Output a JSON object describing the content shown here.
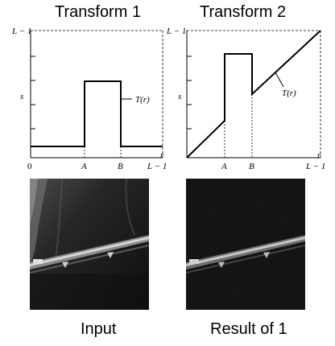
{
  "transform1": {
    "title": "Transform 1",
    "labels": {
      "y_top": "L − 1",
      "y_mid": "s",
      "x_origin": "0",
      "x_a": "A",
      "x_b": "B",
      "x_end": "L − 1",
      "x_axis": "r",
      "curve": "T(r)"
    }
  },
  "transform2": {
    "title": "Transform 2",
    "labels": {
      "y_top": "L − 1",
      "y_mid": "s",
      "x_a": "A",
      "x_b": "B",
      "x_end": "L − 1",
      "x_axis": "r",
      "curve": "T(r)"
    }
  },
  "images": {
    "input_caption": "Input",
    "result_caption": "Result of 1"
  }
}
